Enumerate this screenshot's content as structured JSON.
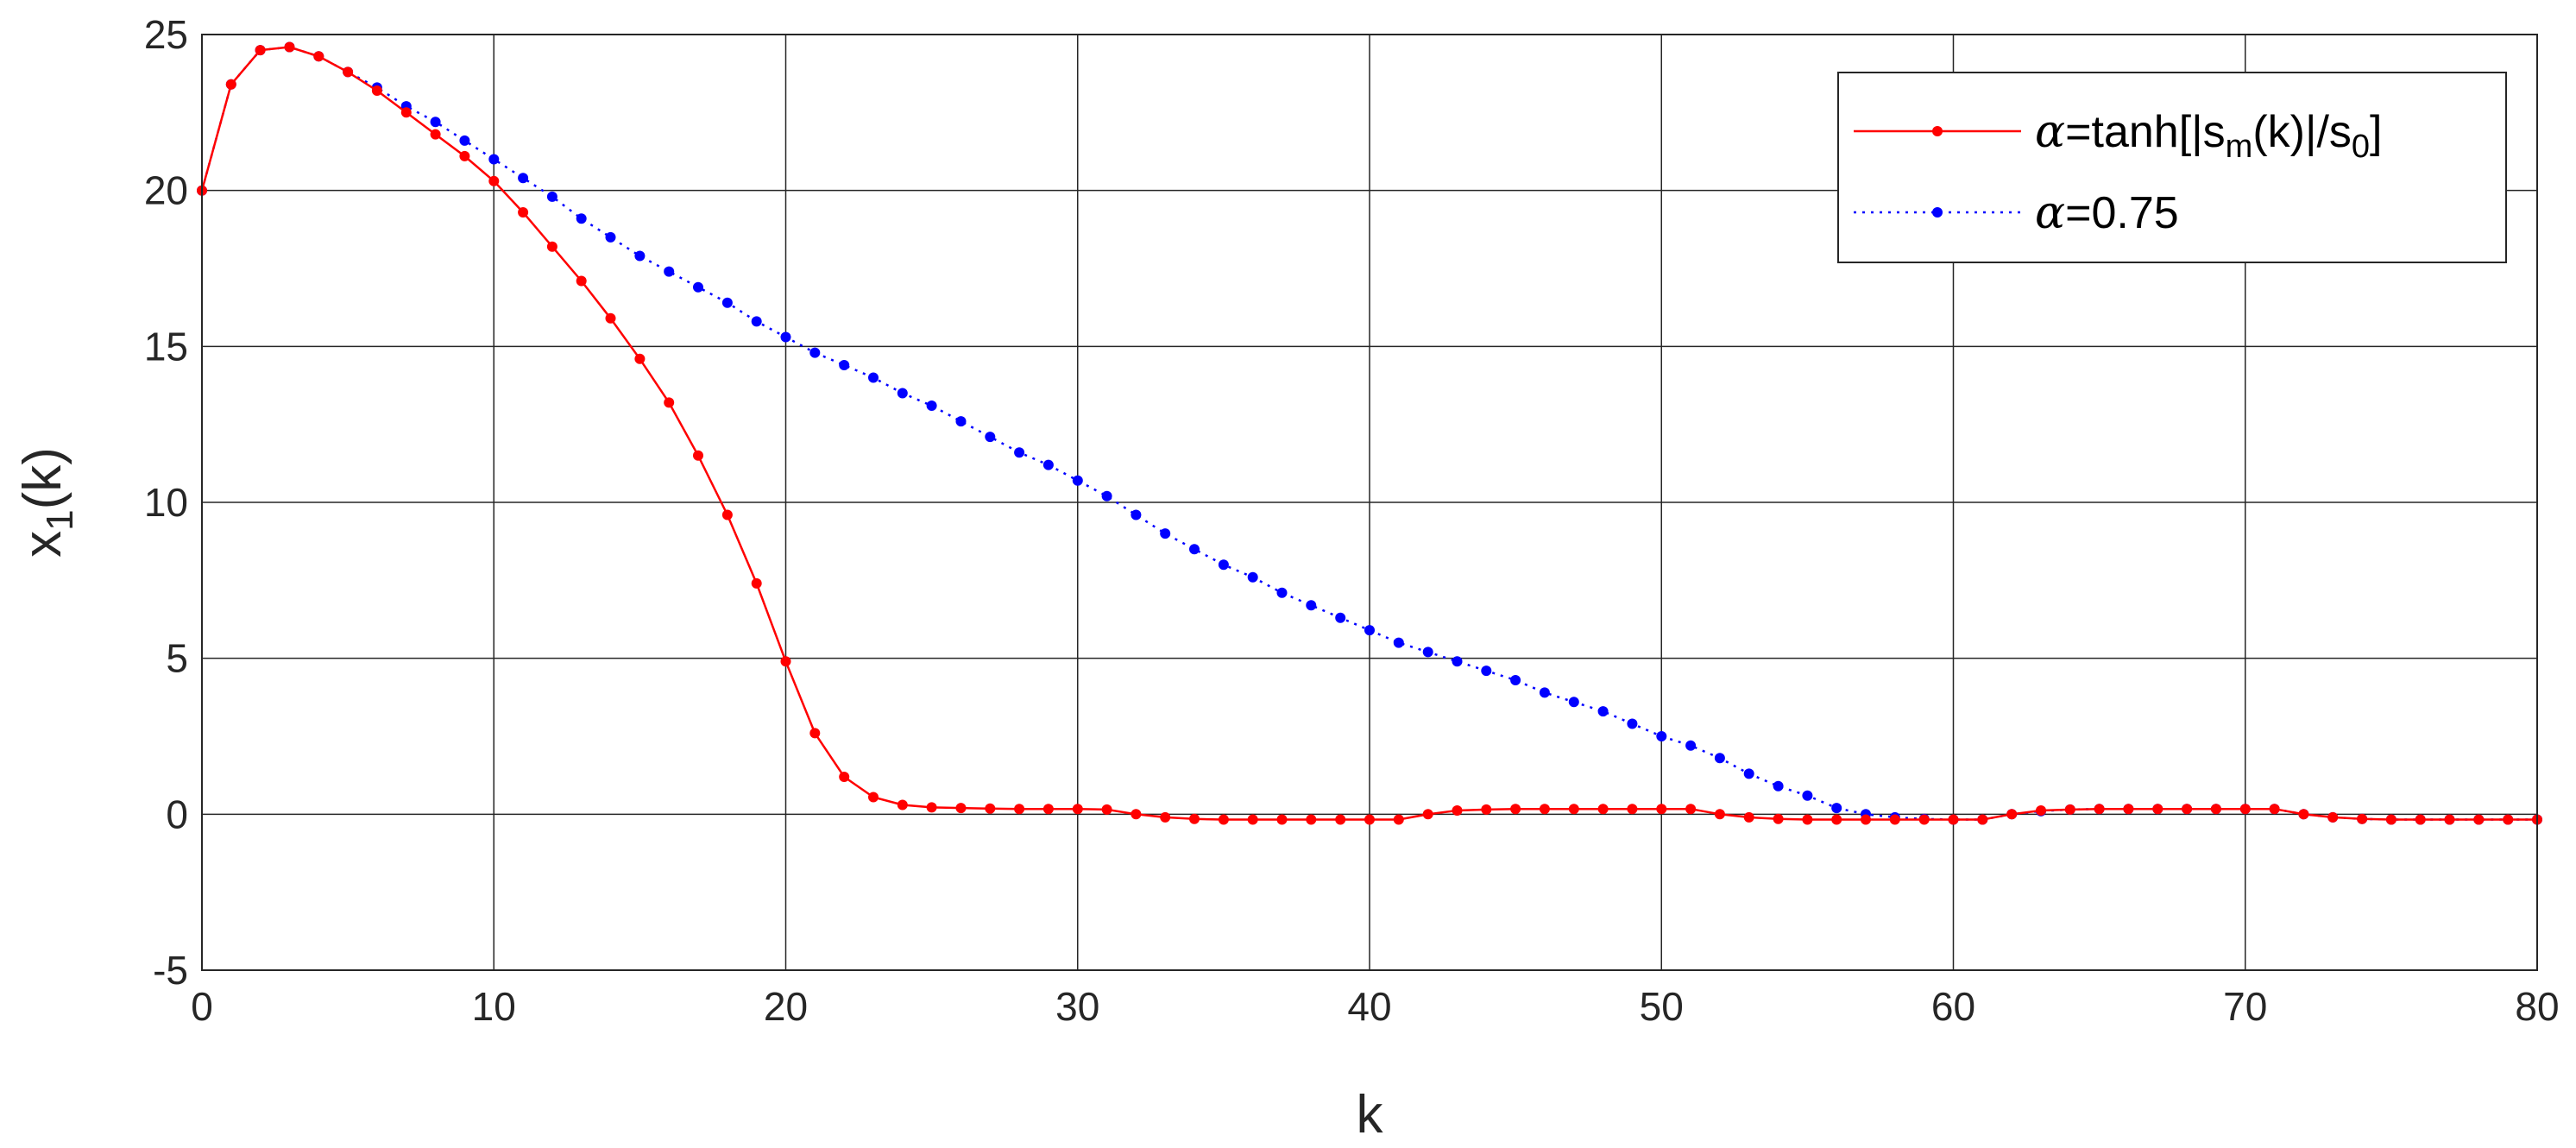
{
  "chart_data": {
    "type": "line",
    "xlabel": "k",
    "ylabel": {
      "main": "x",
      "sub": "1",
      "rest": "(k)"
    },
    "xlim": [
      0,
      80
    ],
    "ylim": [
      -5,
      25
    ],
    "xticks": [
      "0",
      "10",
      "20",
      "30",
      "40",
      "50",
      "60",
      "70",
      "80"
    ],
    "yticks": [
      "-5",
      "0",
      "5",
      "10",
      "15",
      "20",
      "25"
    ],
    "grid": true,
    "legend_position": "top-right",
    "series": [
      {
        "name": "α=tanh[|s_m(k)|/s_0]",
        "legend": {
          "alpha": "α",
          "p1": "=tanh[|s",
          "sub1": "m",
          "p2": "(k)|/s",
          "sub2": "0",
          "p3": "]"
        },
        "color": "#ff0000",
        "line_style": "solid",
        "x": [
          0,
          1,
          2,
          3,
          4,
          5,
          6,
          7,
          8,
          9,
          10,
          11,
          12,
          13,
          14,
          15,
          16,
          17,
          18,
          19,
          20,
          21,
          22,
          23,
          24,
          25,
          26,
          27,
          28,
          29,
          30,
          31,
          32,
          33,
          34,
          35,
          36,
          37,
          38,
          39,
          40,
          41,
          42,
          43,
          44,
          45,
          46,
          47,
          48,
          49,
          50,
          51,
          52,
          53,
          54,
          55,
          56,
          57,
          58,
          59,
          60,
          61,
          62,
          63,
          64,
          65,
          66,
          67,
          68,
          69,
          70,
          71,
          72,
          73,
          74,
          75,
          76,
          77,
          78,
          79,
          80
        ],
        "values": [
          20.0,
          23.4,
          24.5,
          24.6,
          24.3,
          23.8,
          23.2,
          22.5,
          21.8,
          21.1,
          20.3,
          19.3,
          18.2,
          17.1,
          15.9,
          14.6,
          13.2,
          11.5,
          9.6,
          7.4,
          4.9,
          2.6,
          1.2,
          0.55,
          0.3,
          0.22,
          0.2,
          0.18,
          0.17,
          0.17,
          0.17,
          0.15,
          0.0,
          -0.1,
          -0.15,
          -0.17,
          -0.17,
          -0.17,
          -0.17,
          -0.17,
          -0.17,
          -0.17,
          0.0,
          0.12,
          0.15,
          0.17,
          0.17,
          0.17,
          0.17,
          0.17,
          0.17,
          0.17,
          0.0,
          -0.1,
          -0.15,
          -0.17,
          -0.17,
          -0.17,
          -0.17,
          -0.17,
          -0.17,
          -0.17,
          0.0,
          0.12,
          0.15,
          0.17,
          0.17,
          0.17,
          0.17,
          0.17,
          0.17,
          0.17,
          0.0,
          -0.1,
          -0.15,
          -0.17,
          -0.17,
          -0.17,
          -0.17,
          -0.17,
          -0.17
        ]
      },
      {
        "name": "α=0.75",
        "legend": {
          "alpha": "α",
          "p1": "=0.75"
        },
        "color": "#0000ff",
        "line_style": "dotted",
        "x": [
          0,
          1,
          2,
          3,
          4,
          5,
          6,
          7,
          8,
          9,
          10,
          11,
          12,
          13,
          14,
          15,
          16,
          17,
          18,
          19,
          20,
          21,
          22,
          23,
          24,
          25,
          26,
          27,
          28,
          29,
          30,
          31,
          32,
          33,
          34,
          35,
          36,
          37,
          38,
          39,
          40,
          41,
          42,
          43,
          44,
          45,
          46,
          47,
          48,
          49,
          50,
          51,
          52,
          53,
          54,
          55,
          56,
          57,
          58,
          59,
          60,
          61,
          62,
          63,
          64,
          65,
          66,
          67,
          68,
          69,
          70,
          71,
          72,
          73,
          74,
          75,
          76,
          77,
          78,
          79,
          80
        ],
        "values": [
          20.0,
          23.4,
          24.5,
          24.6,
          24.3,
          23.8,
          23.3,
          22.7,
          22.2,
          21.6,
          21.0,
          20.4,
          19.8,
          19.1,
          18.5,
          17.9,
          17.4,
          16.9,
          16.4,
          15.8,
          15.3,
          14.8,
          14.4,
          14.0,
          13.5,
          13.1,
          12.6,
          12.1,
          11.6,
          11.2,
          10.7,
          10.2,
          9.6,
          9.0,
          8.5,
          8.0,
          7.6,
          7.1,
          6.7,
          6.3,
          5.9,
          5.5,
          5.2,
          4.9,
          4.6,
          4.3,
          3.9,
          3.6,
          3.3,
          2.9,
          2.5,
          2.2,
          1.8,
          1.3,
          0.9,
          0.6,
          0.2,
          0.0,
          -0.1,
          -0.15,
          -0.17,
          -0.17,
          0.0,
          0.1,
          0.15,
          0.17,
          0.17,
          0.17,
          0.17,
          0.17,
          0.17,
          0.17,
          0.0,
          -0.1,
          -0.15,
          -0.17,
          -0.17,
          -0.17,
          -0.17,
          -0.17,
          -0.17
        ]
      }
    ]
  }
}
